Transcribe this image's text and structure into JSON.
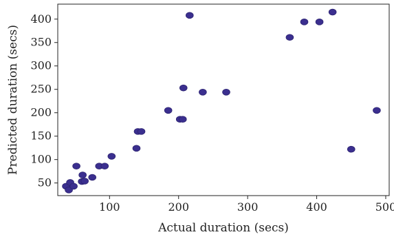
{
  "chart_data": {
    "type": "scatter",
    "title": "",
    "xlabel": "Actual duration (secs)",
    "ylabel": "Predicted duration (secs)",
    "xlim": [
      25,
      505
    ],
    "ylim": [
      23,
      432
    ],
    "xticks": [
      100,
      200,
      300,
      400,
      500
    ],
    "yticks": [
      50,
      100,
      150,
      200,
      250,
      300,
      350,
      400
    ],
    "marker_color": "#3b2f8f",
    "points": [
      {
        "x": 37,
        "y": 43
      },
      {
        "x": 41,
        "y": 35
      },
      {
        "x": 43,
        "y": 51
      },
      {
        "x": 48,
        "y": 43
      },
      {
        "x": 52,
        "y": 86
      },
      {
        "x": 60,
        "y": 53
      },
      {
        "x": 61,
        "y": 67
      },
      {
        "x": 64,
        "y": 54
      },
      {
        "x": 75,
        "y": 62
      },
      {
        "x": 85,
        "y": 86
      },
      {
        "x": 93,
        "y": 86
      },
      {
        "x": 103,
        "y": 107
      },
      {
        "x": 139,
        "y": 124
      },
      {
        "x": 141,
        "y": 160
      },
      {
        "x": 146,
        "y": 160
      },
      {
        "x": 185,
        "y": 205
      },
      {
        "x": 202,
        "y": 186
      },
      {
        "x": 206,
        "y": 186
      },
      {
        "x": 207,
        "y": 253
      },
      {
        "x": 216,
        "y": 408
      },
      {
        "x": 235,
        "y": 244
      },
      {
        "x": 269,
        "y": 244
      },
      {
        "x": 361,
        "y": 361
      },
      {
        "x": 382,
        "y": 394
      },
      {
        "x": 404,
        "y": 394
      },
      {
        "x": 423,
        "y": 415
      },
      {
        "x": 450,
        "y": 122
      },
      {
        "x": 487,
        "y": 205
      }
    ]
  }
}
